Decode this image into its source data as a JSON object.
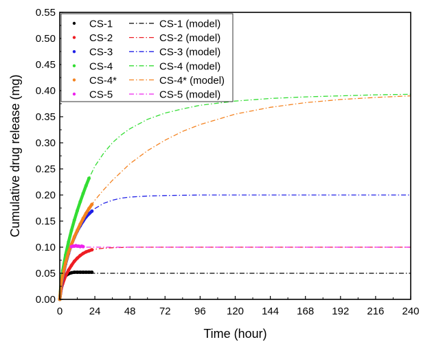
{
  "chart_data": {
    "type": "line",
    "xlabel": "Time (hour)",
    "ylabel": "Cumulative drug release (mg)",
    "xlim": [
      0,
      240
    ],
    "ylim": [
      0,
      0.55
    ],
    "xticks": [
      "0",
      "24",
      "48",
      "72",
      "96",
      "120",
      "144",
      "168",
      "192",
      "216",
      "240"
    ],
    "yticks": [
      "0.00",
      "0.05",
      "0.10",
      "0.15",
      "0.20",
      "0.25",
      "0.30",
      "0.35",
      "0.40",
      "0.45",
      "0.50",
      "0.55"
    ],
    "grid": false,
    "legend_position": "top-left",
    "series": [
      {
        "name": "CS-1",
        "model_name": "CS-1 (model)",
        "color": "#000000",
        "data_x": [
          0,
          1,
          2,
          3,
          4,
          6,
          8,
          10,
          12,
          14,
          16,
          18,
          20,
          22
        ],
        "data_y": [
          0,
          0.022,
          0.034,
          0.041,
          0.045,
          0.049,
          0.051,
          0.052,
          0.052,
          0.052,
          0.052,
          0.052,
          0.052,
          0.052
        ],
        "model_x": [
          0,
          2,
          4,
          6,
          8,
          10,
          12,
          16,
          20,
          30,
          48,
          72,
          96,
          120,
          144,
          168,
          192,
          216,
          240
        ],
        "model_y": [
          0,
          0.034,
          0.045,
          0.049,
          0.05,
          0.05,
          0.05,
          0.05,
          0.05,
          0.05,
          0.05,
          0.05,
          0.05,
          0.05,
          0.05,
          0.05,
          0.05,
          0.05,
          0.05
        ]
      },
      {
        "name": "CS-2",
        "model_name": "CS-2 (model)",
        "color": "#ee1d23",
        "data_x": [
          0,
          1,
          2,
          4,
          6,
          8,
          10,
          12,
          14,
          16,
          18,
          20,
          22
        ],
        "data_y": [
          0,
          0.02,
          0.03,
          0.045,
          0.056,
          0.065,
          0.073,
          0.079,
          0.084,
          0.088,
          0.091,
          0.093,
          0.095
        ],
        "model_x": [
          0,
          2,
          4,
          6,
          8,
          10,
          12,
          16,
          20,
          24,
          30,
          36,
          48,
          60,
          72,
          96,
          120,
          144,
          168,
          192,
          216,
          240
        ],
        "model_y": [
          0,
          0.03,
          0.045,
          0.056,
          0.065,
          0.073,
          0.079,
          0.088,
          0.093,
          0.096,
          0.098,
          0.099,
          0.1,
          0.1,
          0.1,
          0.1,
          0.1,
          0.1,
          0.1,
          0.1,
          0.1,
          0.1
        ]
      },
      {
        "name": "CS-3",
        "model_name": "CS-3 (model)",
        "color": "#1f1fe6",
        "data_x": [
          0,
          1,
          2,
          4,
          6,
          8,
          10,
          12,
          14,
          16,
          18,
          20,
          22
        ],
        "data_y": [
          0,
          0.025,
          0.042,
          0.068,
          0.088,
          0.105,
          0.119,
          0.131,
          0.141,
          0.15,
          0.158,
          0.164,
          0.169
        ],
        "model_x": [
          0,
          2,
          4,
          6,
          8,
          10,
          12,
          16,
          20,
          24,
          30,
          36,
          42,
          48,
          60,
          72,
          96,
          120,
          144,
          168,
          192,
          216,
          240
        ],
        "model_y": [
          0,
          0.042,
          0.068,
          0.088,
          0.105,
          0.119,
          0.131,
          0.15,
          0.164,
          0.174,
          0.184,
          0.19,
          0.194,
          0.196,
          0.198,
          0.199,
          0.2,
          0.2,
          0.2,
          0.2,
          0.2,
          0.2,
          0.2
        ]
      },
      {
        "name": "CS-4",
        "model_name": "CS-4 (model)",
        "color": "#33dd33",
        "data_x": [
          0,
          1,
          2,
          4,
          6,
          8,
          10,
          12,
          14,
          16,
          18,
          20
        ],
        "data_y": [
          0,
          0.035,
          0.055,
          0.085,
          0.11,
          0.132,
          0.152,
          0.17,
          0.187,
          0.203,
          0.218,
          0.232
        ],
        "model_x": [
          0,
          2,
          4,
          6,
          8,
          10,
          12,
          16,
          20,
          24,
          30,
          36,
          42,
          48,
          60,
          72,
          84,
          96,
          120,
          144,
          168,
          192,
          216,
          240
        ],
        "model_y": [
          0,
          0.055,
          0.085,
          0.11,
          0.132,
          0.152,
          0.17,
          0.203,
          0.232,
          0.255,
          0.28,
          0.3,
          0.315,
          0.327,
          0.345,
          0.357,
          0.365,
          0.372,
          0.38,
          0.385,
          0.388,
          0.39,
          0.392,
          0.393
        ]
      },
      {
        "name": "CS-4*",
        "model_name": "CS-4* (model)",
        "color": "#f4821f",
        "data_x": [
          0,
          1,
          2,
          4,
          6,
          8,
          10,
          12,
          14,
          16,
          18,
          20,
          22
        ],
        "data_y": [
          0,
          0.03,
          0.045,
          0.07,
          0.09,
          0.105,
          0.12,
          0.132,
          0.144,
          0.155,
          0.165,
          0.174,
          0.182
        ],
        "model_x": [
          0,
          2,
          4,
          6,
          8,
          10,
          12,
          16,
          20,
          24,
          30,
          36,
          48,
          60,
          72,
          84,
          96,
          120,
          144,
          168,
          192,
          216,
          240
        ],
        "model_y": [
          0,
          0.045,
          0.07,
          0.09,
          0.105,
          0.12,
          0.132,
          0.155,
          0.174,
          0.19,
          0.21,
          0.228,
          0.26,
          0.285,
          0.305,
          0.322,
          0.335,
          0.355,
          0.368,
          0.377,
          0.383,
          0.387,
          0.39
        ]
      },
      {
        "name": "CS-5",
        "model_name": "CS-5 (model)",
        "color": "#ee22ee",
        "data_x": [
          8,
          9,
          10,
          11,
          12,
          13,
          14,
          15,
          16
        ],
        "data_y": [
          0.101,
          0.102,
          0.102,
          0.103,
          0.102,
          0.102,
          0.101,
          0.102,
          0.101
        ],
        "model_x": [
          0,
          2,
          4,
          6,
          8,
          10,
          12,
          16,
          20,
          30,
          48,
          72,
          96,
          120,
          144,
          168,
          192,
          216,
          240
        ],
        "model_y": [
          0,
          0.06,
          0.085,
          0.096,
          0.1,
          0.1,
          0.1,
          0.1,
          0.1,
          0.1,
          0.1,
          0.1,
          0.1,
          0.1,
          0.1,
          0.1,
          0.1,
          0.1,
          0.1
        ]
      }
    ]
  }
}
